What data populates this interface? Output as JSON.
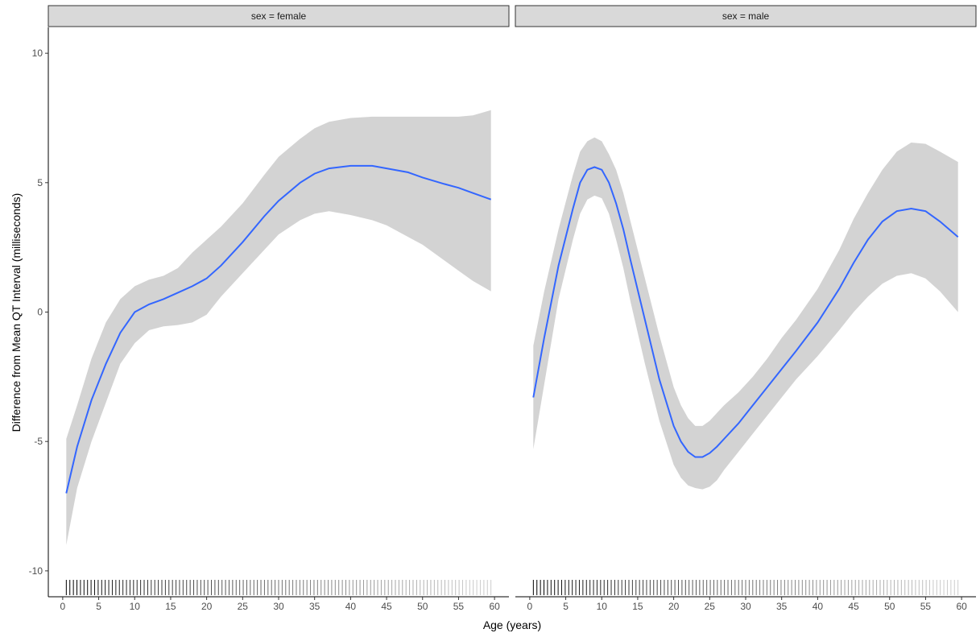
{
  "chart_data": {
    "type": "line",
    "xlabel": "Age (years)",
    "ylabel": "Difference from Mean QT Interval (milliseconds)",
    "xlim": [
      -2,
      62
    ],
    "ylim": [
      -11,
      11
    ],
    "x_ticks": [
      0,
      5,
      10,
      15,
      20,
      25,
      30,
      35,
      40,
      45,
      50,
      55,
      60
    ],
    "y_ticks": [
      -10,
      -5,
      0,
      5,
      10
    ],
    "x_tick_labels": [
      "0",
      "5",
      "10",
      "15",
      "20",
      "25",
      "30",
      "35",
      "40",
      "45",
      "50",
      "55",
      "60"
    ],
    "y_tick_labels": [
      "-10",
      "-5",
      "0",
      "5",
      "10"
    ],
    "grid": false,
    "smooth_color": "#3366FF",
    "ribbon_color": "#d3d3d3",
    "strip_fill": "#d9d9d9",
    "panels": [
      {
        "strip_label": "sex = female",
        "x": [
          0.5,
          2,
          4,
          6,
          8,
          10,
          12,
          14,
          16,
          18,
          20,
          22,
          25,
          28,
          30,
          33,
          35,
          37,
          40,
          43,
          45,
          48,
          50,
          53,
          55,
          57,
          59.5
        ],
        "y": [
          -7.0,
          -5.2,
          -3.4,
          -2.0,
          -0.8,
          0.0,
          0.3,
          0.5,
          0.75,
          1.0,
          1.3,
          1.8,
          2.7,
          3.7,
          4.3,
          5.0,
          5.35,
          5.55,
          5.65,
          5.65,
          5.55,
          5.4,
          5.2,
          4.95,
          4.8,
          4.6,
          4.35
        ],
        "lower": [
          -9.0,
          -6.8,
          -5.0,
          -3.5,
          -2.0,
          -1.2,
          -0.7,
          -0.55,
          -0.5,
          -0.4,
          -0.1,
          0.6,
          1.5,
          2.4,
          3.0,
          3.55,
          3.8,
          3.9,
          3.75,
          3.55,
          3.35,
          2.9,
          2.6,
          2.0,
          1.6,
          1.2,
          0.8
        ],
        "upper": [
          -4.9,
          -3.6,
          -1.8,
          -0.4,
          0.5,
          1.0,
          1.25,
          1.4,
          1.7,
          2.3,
          2.8,
          3.3,
          4.2,
          5.3,
          6.0,
          6.7,
          7.1,
          7.35,
          7.5,
          7.55,
          7.55,
          7.55,
          7.55,
          7.55,
          7.55,
          7.6,
          7.8
        ],
        "rug_weights": [
          1.0,
          0.95,
          0.92,
          0.88,
          0.85,
          0.82,
          0.78,
          0.75,
          0.72,
          0.7,
          0.68,
          0.65,
          0.62,
          0.6,
          0.58,
          0.55,
          0.52,
          0.5,
          0.47,
          0.45,
          0.42,
          0.4,
          0.37,
          0.35,
          0.32,
          0.3,
          0.28,
          0.25,
          0.22,
          0.2
        ]
      },
      {
        "strip_label": "sex = male",
        "x": [
          0.5,
          2,
          4,
          6,
          7,
          8,
          9,
          10,
          11,
          12,
          13,
          14,
          16,
          18,
          20,
          21,
          22,
          23,
          24,
          25,
          26,
          27,
          29,
          31,
          33,
          35,
          37,
          40,
          43,
          45,
          47,
          49,
          51,
          53,
          55,
          57,
          59.5
        ],
        "y": [
          -3.3,
          -1.0,
          1.8,
          4.0,
          5.0,
          5.5,
          5.6,
          5.5,
          5.0,
          4.2,
          3.2,
          2.0,
          -0.3,
          -2.6,
          -4.4,
          -5.0,
          -5.4,
          -5.6,
          -5.6,
          -5.45,
          -5.2,
          -4.9,
          -4.3,
          -3.6,
          -2.9,
          -2.2,
          -1.5,
          -0.4,
          0.9,
          1.9,
          2.8,
          3.5,
          3.9,
          4.0,
          3.9,
          3.5,
          2.9
        ],
        "lower": [
          -5.3,
          -2.8,
          0.5,
          2.8,
          3.8,
          4.35,
          4.5,
          4.4,
          3.8,
          2.8,
          1.7,
          0.4,
          -2.0,
          -4.2,
          -5.9,
          -6.4,
          -6.7,
          -6.8,
          -6.85,
          -6.75,
          -6.5,
          -6.1,
          -5.4,
          -4.7,
          -4.0,
          -3.3,
          -2.6,
          -1.7,
          -0.7,
          0.0,
          0.6,
          1.1,
          1.4,
          1.5,
          1.3,
          0.8,
          0.0
        ],
        "upper": [
          -1.3,
          0.8,
          3.2,
          5.3,
          6.2,
          6.6,
          6.75,
          6.6,
          6.1,
          5.5,
          4.6,
          3.5,
          1.3,
          -0.9,
          -2.9,
          -3.6,
          -4.1,
          -4.4,
          -4.4,
          -4.2,
          -3.9,
          -3.6,
          -3.1,
          -2.5,
          -1.8,
          -1.0,
          -0.3,
          0.9,
          2.4,
          3.6,
          4.6,
          5.5,
          6.2,
          6.55,
          6.5,
          6.2,
          5.8
        ],
        "rug_weights": [
          1.0,
          0.95,
          0.92,
          0.88,
          0.85,
          0.82,
          0.78,
          0.75,
          0.72,
          0.7,
          0.68,
          0.65,
          0.62,
          0.6,
          0.58,
          0.55,
          0.52,
          0.5,
          0.47,
          0.45,
          0.42,
          0.4,
          0.37,
          0.35,
          0.32,
          0.3,
          0.28,
          0.25,
          0.22,
          0.2
        ]
      }
    ]
  }
}
